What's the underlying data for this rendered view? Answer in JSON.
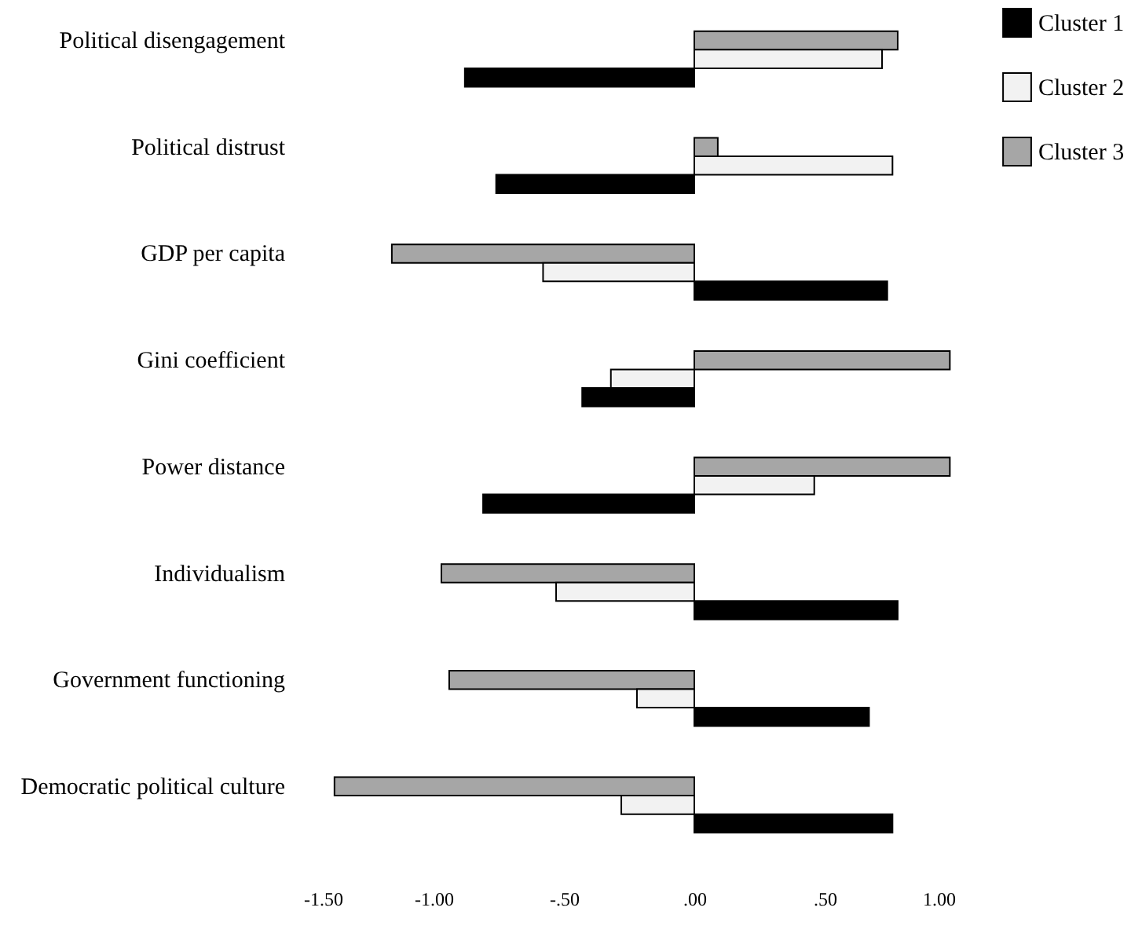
{
  "chart_data": {
    "type": "bar",
    "orientation": "horizontal",
    "categories": [
      "Political disengagement",
      "Political distrust",
      "GDP per capita",
      "Gini coefficient",
      "Power distance",
      "Individualism",
      "Government functioning",
      "Democratic political culture"
    ],
    "series": [
      {
        "name": "Cluster 3",
        "color": "#a6a6a6",
        "values": [
          0.78,
          0.09,
          -1.16,
          0.98,
          0.98,
          -0.97,
          -0.94,
          -1.38
        ]
      },
      {
        "name": "Cluster 2",
        "color": "#f2f2f2",
        "values": [
          0.72,
          0.76,
          -0.58,
          -0.32,
          0.46,
          -0.53,
          -0.22,
          -0.28
        ]
      },
      {
        "name": "Cluster 1",
        "color": "#000000",
        "values": [
          -0.88,
          -0.76,
          0.74,
          -0.43,
          -0.81,
          0.78,
          0.67,
          0.76
        ]
      }
    ],
    "xlim": [
      -1.5,
      1.0
    ],
    "xticks": [
      {
        "value": -1.5,
        "label": "-1.50"
      },
      {
        "value": -1.0,
        "label": "-1.00"
      },
      {
        "value": -0.5,
        "label": "-.50"
      },
      {
        "value": 0,
        "label": ".00"
      },
      {
        "value": 0.5,
        "label": ".50"
      },
      {
        "value": 1.0,
        "label": "1.00"
      }
    ],
    "grid": false,
    "legend": "top right"
  }
}
